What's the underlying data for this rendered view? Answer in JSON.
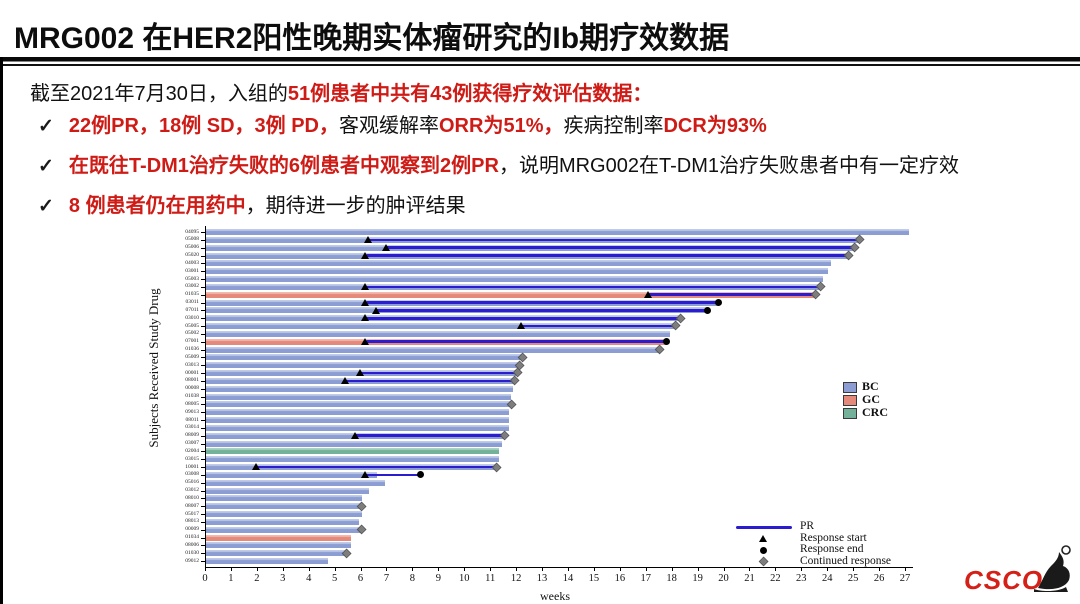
{
  "slide": {
    "title": "MRG002 在HER2阳性晚期实体瘤研究的Ib期疗效数据",
    "intro": {
      "prefix": "截至2021年7月30日，入组的",
      "highlight": "51例患者中共有43例获得疗效评估数据："
    },
    "bullets": [
      {
        "check": "✓",
        "segments": [
          {
            "text": "22例PR，18例 SD，3例 PD，",
            "red": true
          },
          {
            "text": "客观缓解率",
            "red": false
          },
          {
            "text": "ORR为51%，",
            "red": true
          },
          {
            "text": "疾病控制率",
            "red": false
          },
          {
            "text": "DCR为93%",
            "red": true
          }
        ]
      },
      {
        "check": "✓",
        "segments": [
          {
            "text": "在既往T-DM1治疗失败的6例患者中观察到2例PR",
            "red": true
          },
          {
            "text": "，说明MRG002在T-DM1治疗失败患者中有一定疗效",
            "red": false
          }
        ]
      },
      {
        "check": "✓",
        "segments": [
          {
            "text": "8 例患者仍在用药中",
            "red": true
          },
          {
            "text": "，期待进一步的肿评结果",
            "red": false
          }
        ]
      }
    ]
  },
  "logo": {
    "text": "CSCO"
  },
  "chart_data": {
    "type": "bar",
    "subtype": "swimmer-plot",
    "title": "",
    "xlabel": "weeks",
    "ylabel": "Subjects Received Study Drug",
    "xlim": [
      0,
      27
    ],
    "xticks": [
      0,
      1,
      2,
      3,
      4,
      5,
      6,
      7,
      8,
      9,
      10,
      11,
      12,
      13,
      14,
      15,
      16,
      17,
      18,
      19,
      20,
      21,
      22,
      23,
      24,
      25,
      26,
      27
    ],
    "grid": false,
    "colors": {
      "BC": "#8b9dd3",
      "GC": "#e5897b",
      "CRC": "#74b19b",
      "pr_line": "#2b1ccf",
      "response_marker": "#000000",
      "continued_marker": "#7d7d7d"
    },
    "group_legend": [
      {
        "key": "BC",
        "label": "BC"
      },
      {
        "key": "GC",
        "label": "GC"
      },
      {
        "key": "CRC",
        "label": "CRC"
      }
    ],
    "marker_legend": [
      {
        "key": "pr",
        "label": "PR",
        "symbol": "line"
      },
      {
        "key": "response_start",
        "label": "Response start",
        "symbol": "triangle"
      },
      {
        "key": "response_end",
        "label": "Response end",
        "symbol": "circle"
      },
      {
        "key": "continued_response",
        "label": "Continued response",
        "symbol": "diamond"
      }
    ],
    "subjects": [
      {
        "id": "04095",
        "group": "BC",
        "weeks": 27.1,
        "pr": null,
        "prEnd": null,
        "end": null
      },
      {
        "id": "05008",
        "group": "BC",
        "weeks": 25.2,
        "pr": 6.3,
        "prEnd": null,
        "end": "cont"
      },
      {
        "id": "05006",
        "group": "BC",
        "weeks": 25.0,
        "pr": 7.0,
        "prEnd": null,
        "end": "cont"
      },
      {
        "id": "05020",
        "group": "BC",
        "weeks": 24.8,
        "pr": 6.2,
        "prEnd": null,
        "end": "cont"
      },
      {
        "id": "04003",
        "group": "BC",
        "weeks": 24.1,
        "pr": null,
        "prEnd": null,
        "end": null
      },
      {
        "id": "03001",
        "group": "BC",
        "weeks": 24.0,
        "pr": null,
        "prEnd": null,
        "end": null
      },
      {
        "id": "05003",
        "group": "BC",
        "weeks": 23.8,
        "pr": null,
        "prEnd": null,
        "end": null
      },
      {
        "id": "03002",
        "group": "BC",
        "weeks": 23.7,
        "pr": 6.2,
        "prEnd": null,
        "end": "cont"
      },
      {
        "id": "01035",
        "group": "GC",
        "weeks": 23.5,
        "pr": 17.1,
        "prEnd": null,
        "end": "cont"
      },
      {
        "id": "03011",
        "group": "BC",
        "weeks": 19.8,
        "pr": 6.2,
        "prEnd": null,
        "end": "end"
      },
      {
        "id": "07011",
        "group": "BC",
        "weeks": 19.4,
        "pr": 6.6,
        "prEnd": null,
        "end": "end"
      },
      {
        "id": "03010",
        "group": "BC",
        "weeks": 18.3,
        "pr": 6.2,
        "prEnd": null,
        "end": "cont"
      },
      {
        "id": "05005",
        "group": "BC",
        "weeks": 18.1,
        "pr": 12.2,
        "prEnd": null,
        "end": "cont"
      },
      {
        "id": "05002",
        "group": "BC",
        "weeks": 17.9,
        "pr": null,
        "prEnd": null,
        "end": null
      },
      {
        "id": "07001",
        "group": "GC",
        "weeks": 17.8,
        "pr": 6.2,
        "prEnd": null,
        "end": "end"
      },
      {
        "id": "01036",
        "group": "BC",
        "weeks": 17.5,
        "pr": null,
        "prEnd": null,
        "end": "cont"
      },
      {
        "id": "05009",
        "group": "BC",
        "weeks": 12.2,
        "pr": null,
        "prEnd": null,
        "end": "cont"
      },
      {
        "id": "03013",
        "group": "BC",
        "weeks": 12.1,
        "pr": null,
        "prEnd": null,
        "end": "cont"
      },
      {
        "id": "00001",
        "group": "BC",
        "weeks": 12.0,
        "pr": 6.0,
        "prEnd": null,
        "end": "cont"
      },
      {
        "id": "08001",
        "group": "BC",
        "weeks": 11.9,
        "pr": 5.4,
        "prEnd": null,
        "end": "cont"
      },
      {
        "id": "00008",
        "group": "BC",
        "weeks": 11.85,
        "pr": null,
        "prEnd": null,
        "end": null
      },
      {
        "id": "01038",
        "group": "BC",
        "weeks": 11.75,
        "pr": null,
        "prEnd": null,
        "end": null
      },
      {
        "id": "08005",
        "group": "BC",
        "weeks": 11.8,
        "pr": null,
        "prEnd": null,
        "end": "cont"
      },
      {
        "id": "09013",
        "group": "BC",
        "weeks": 11.7,
        "pr": null,
        "prEnd": null,
        "end": null
      },
      {
        "id": "08011",
        "group": "BC",
        "weeks": 11.7,
        "pr": null,
        "prEnd": null,
        "end": null
      },
      {
        "id": "03014",
        "group": "BC",
        "weeks": 11.7,
        "pr": null,
        "prEnd": null,
        "end": null
      },
      {
        "id": "08009",
        "group": "BC",
        "weeks": 11.5,
        "pr": 5.8,
        "prEnd": null,
        "end": "cont"
      },
      {
        "id": "03007",
        "group": "BC",
        "weeks": 11.4,
        "pr": null,
        "prEnd": null,
        "end": null
      },
      {
        "id": "02004",
        "group": "CRC",
        "weeks": 11.3,
        "pr": null,
        "prEnd": null,
        "end": null
      },
      {
        "id": "03015",
        "group": "BC",
        "weeks": 11.3,
        "pr": null,
        "prEnd": null,
        "end": null
      },
      {
        "id": "10001",
        "group": "BC",
        "weeks": 11.2,
        "pr": 2.0,
        "prEnd": null,
        "end": "cont"
      },
      {
        "id": "03008",
        "group": "BC",
        "weeks": 6.6,
        "pr": 6.2,
        "prEnd": 8.3,
        "end": "end"
      },
      {
        "id": "05016",
        "group": "BC",
        "weeks": 6.9,
        "pr": null,
        "prEnd": null,
        "end": null
      },
      {
        "id": "03012",
        "group": "BC",
        "weeks": 6.3,
        "pr": null,
        "prEnd": null,
        "end": null
      },
      {
        "id": "08010",
        "group": "BC",
        "weeks": 6.0,
        "pr": null,
        "prEnd": null,
        "end": null
      },
      {
        "id": "08007",
        "group": "BC",
        "weeks": 6.0,
        "pr": null,
        "prEnd": null,
        "end": "cont"
      },
      {
        "id": "05017",
        "group": "BC",
        "weeks": 6.0,
        "pr": null,
        "prEnd": null,
        "end": null
      },
      {
        "id": "08013",
        "group": "BC",
        "weeks": 5.9,
        "pr": null,
        "prEnd": null,
        "end": null
      },
      {
        "id": "00009",
        "group": "BC",
        "weeks": 6.0,
        "pr": null,
        "prEnd": null,
        "end": "cont"
      },
      {
        "id": "01034",
        "group": "GC",
        "weeks": 5.6,
        "pr": null,
        "prEnd": null,
        "end": null
      },
      {
        "id": "08006",
        "group": "BC",
        "weeks": 5.6,
        "pr": null,
        "prEnd": null,
        "end": null
      },
      {
        "id": "01030",
        "group": "BC",
        "weeks": 5.4,
        "pr": null,
        "prEnd": null,
        "end": "cont"
      },
      {
        "id": "09012",
        "group": "BC",
        "weeks": 4.7,
        "pr": null,
        "prEnd": null,
        "end": null
      }
    ]
  }
}
